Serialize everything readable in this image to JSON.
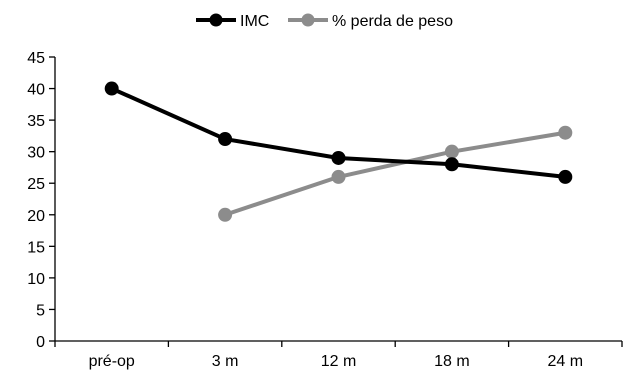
{
  "chart_data": {
    "type": "line",
    "title": "",
    "xlabel": "",
    "ylabel": "",
    "categories": [
      "pré-op",
      "3 m",
      "12 m",
      "18 m",
      "24 m"
    ],
    "ylim": [
      0,
      45
    ],
    "yticks": [
      "0",
      "5",
      "10",
      "15",
      "20",
      "25",
      "30",
      "35",
      "40",
      "45"
    ],
    "grid": false,
    "legend_position": "top-center",
    "series": [
      {
        "name": "IMC",
        "color": "#000000",
        "values": [
          40,
          32,
          29,
          28,
          26
        ]
      },
      {
        "name": "% perda de peso",
        "color": "#8c8c8c",
        "values": [
          null,
          20,
          26,
          30,
          33
        ]
      }
    ]
  }
}
